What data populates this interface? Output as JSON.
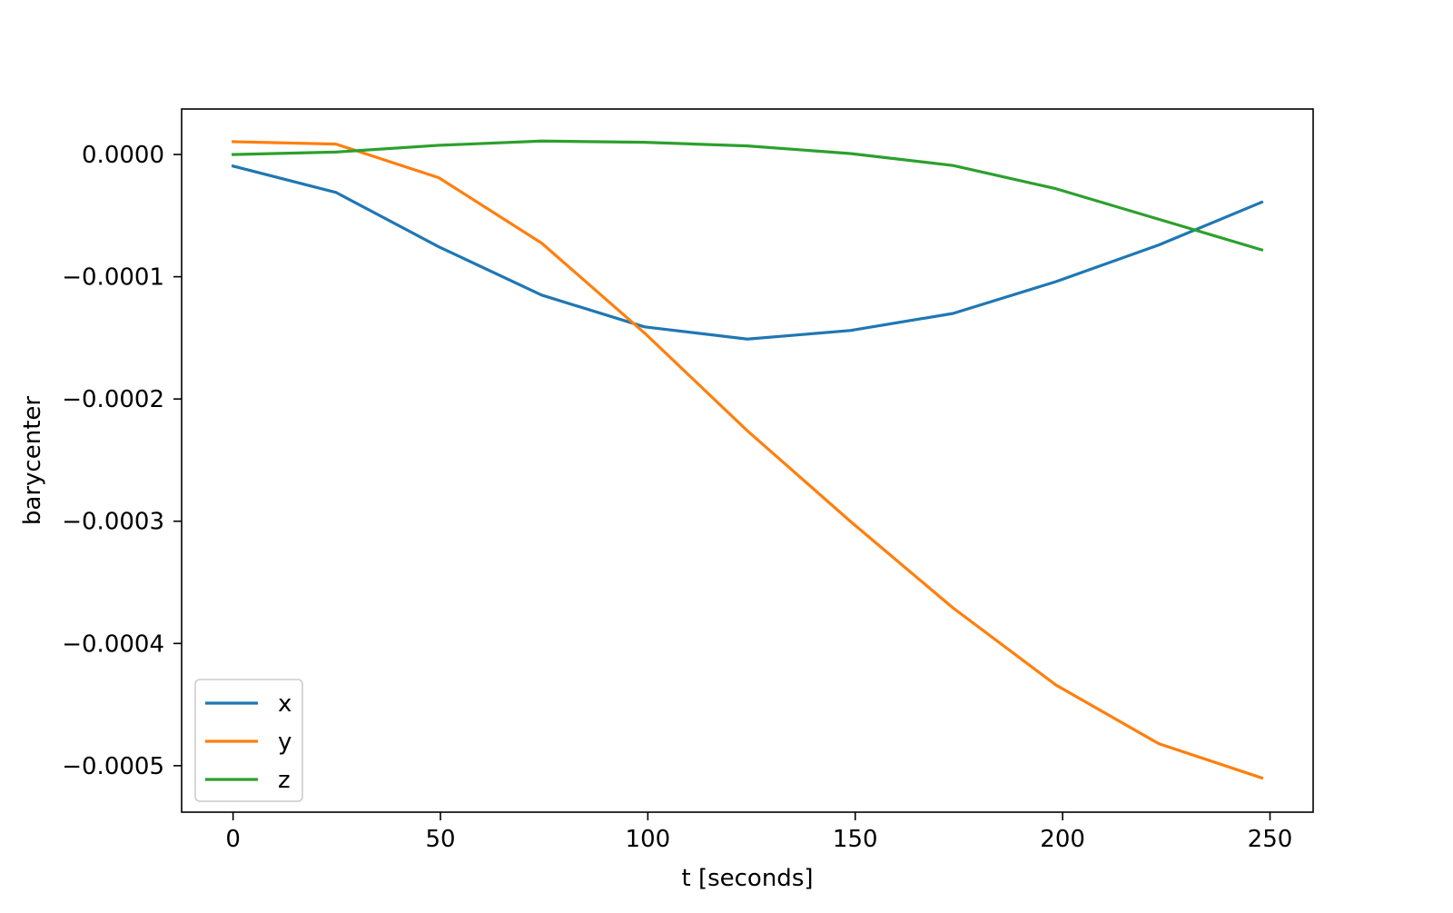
{
  "chart_data": {
    "type": "line",
    "title": "",
    "xlabel": "t [seconds]",
    "ylabel": "barycenter",
    "xlim": [
      -12.4,
      260.4
    ],
    "ylim": [
      -0.000538,
      3.72e-05
    ],
    "x_ticks": [
      0,
      50,
      100,
      150,
      200,
      250
    ],
    "y_ticks": [
      0.0,
      -0.0001,
      -0.0002,
      -0.0003,
      -0.0004,
      -0.0005
    ],
    "x_tick_labels": [
      "0",
      "50",
      "100",
      "150",
      "200",
      "250"
    ],
    "y_tick_labels": [
      "0.0000",
      "−0.0001",
      "−0.0002",
      "−0.0003",
      "−0.0004",
      "−0.0005"
    ],
    "grid": false,
    "legend": {
      "placement": "lower-left"
    },
    "x": [
      0,
      24.8,
      49.6,
      74.4,
      99.2,
      124,
      148.8,
      173.6,
      198.4,
      223.2,
      248
    ],
    "series": [
      {
        "name": "x",
        "color": "#1f77b4",
        "values": [
          -9.5e-06,
          -3.1e-05,
          -7.55e-05,
          -0.000115,
          -0.000141,
          -0.000151,
          -0.000144,
          -0.00013,
          -0.000104,
          -7.4e-05,
          -3.9e-05
        ]
      },
      {
        "name": "y",
        "color": "#ff7f0e",
        "values": [
          1.05e-05,
          8.5e-06,
          -1.9e-05,
          -7.25e-05,
          -0.000146,
          -0.000226,
          -0.0003,
          -0.000371,
          -0.000434,
          -0.000482,
          -0.00051
        ]
      },
      {
        "name": "z",
        "color": "#2ca02c",
        "values": [
          0.0,
          2e-06,
          7.5e-06,
          1.1e-05,
          1e-05,
          7e-06,
          8e-07,
          -9e-06,
          -2.8e-05,
          -5.3e-05,
          -7.8e-05
        ]
      }
    ]
  }
}
